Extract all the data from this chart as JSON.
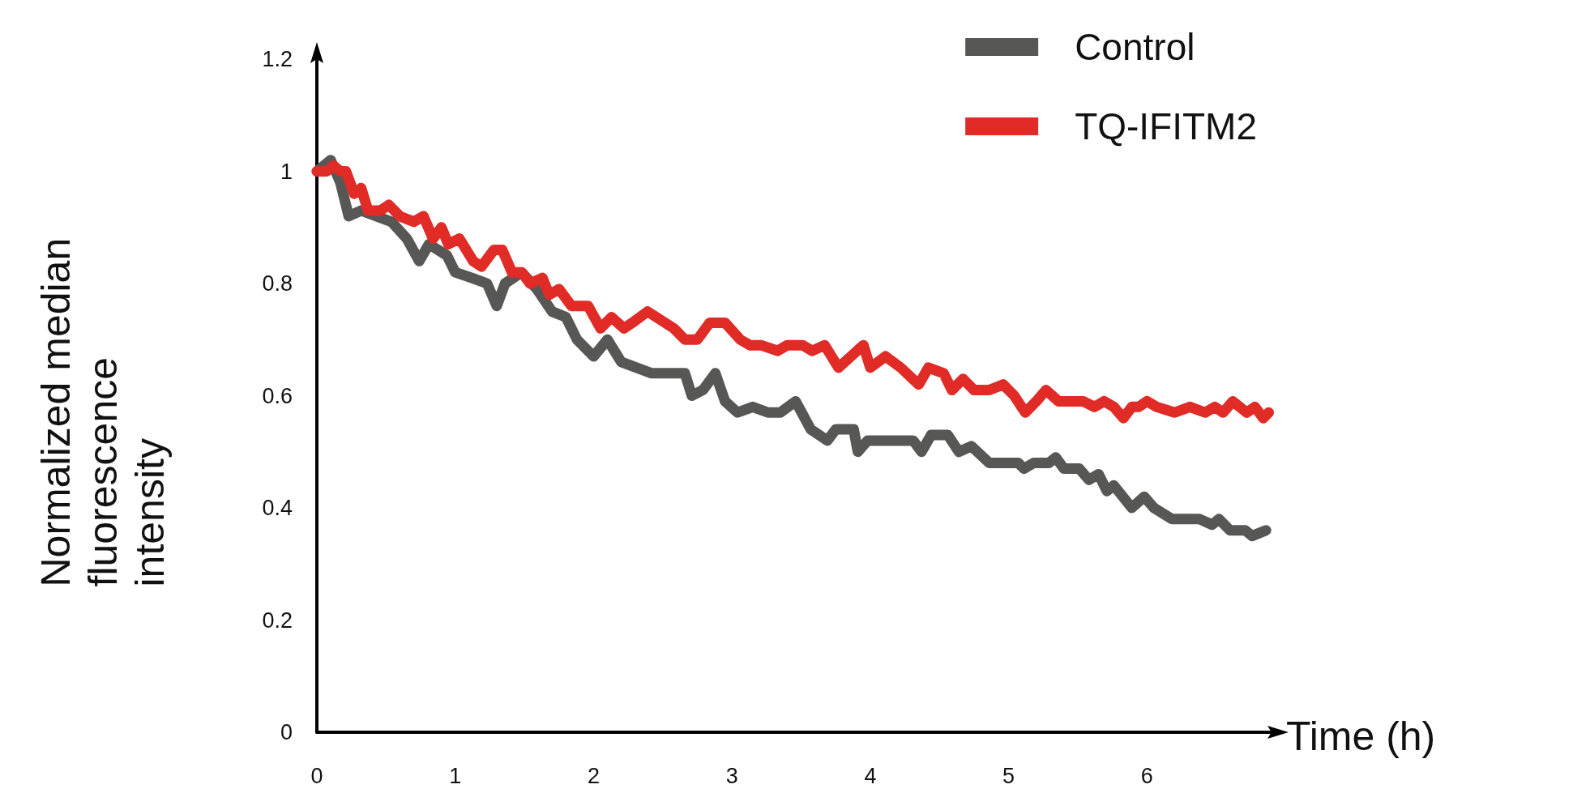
{
  "chart_data": {
    "type": "line",
    "xlabel": "Time (h)",
    "ylabel": "Normalized median fluorescence intensity",
    "xlim": [
      0,
      6.9
    ],
    "ylim": [
      0,
      1.2
    ],
    "xticks": [
      0,
      1,
      2,
      3,
      4,
      5,
      6
    ],
    "yticks": [
      0,
      0.2,
      0.4,
      0.6,
      0.8,
      1,
      1.2
    ],
    "grid": false,
    "legend": "top right",
    "marker": "none",
    "line_style": "solid",
    "series": [
      {
        "name": "Control",
        "color": "#575755",
        "x": [
          0,
          0.1,
          0.17,
          0.23,
          0.32,
          0.54,
          0.65,
          0.74,
          0.81,
          0.94,
          1.0,
          1.12,
          1.23,
          1.3,
          1.36,
          1.48,
          1.59,
          1.7,
          1.8,
          1.88,
          2.0,
          2.1,
          2.2,
          2.42,
          2.66,
          2.71,
          2.79,
          2.88,
          2.95,
          3.04,
          3.15,
          3.26,
          3.35,
          3.46,
          3.57,
          3.69,
          3.75,
          3.88,
          3.91,
          3.98,
          4.31,
          4.37,
          4.44,
          4.56,
          4.64,
          4.73,
          4.86,
          5.07,
          5.11,
          5.18,
          5.29,
          5.34,
          5.4,
          5.51,
          5.58,
          5.65,
          5.71,
          5.76,
          5.89,
          5.98,
          6.05,
          6.18,
          6.38,
          6.47,
          6.52,
          6.6,
          6.71,
          6.76,
          6.86
        ],
        "values": [
          1.0,
          1.02,
          0.98,
          0.92,
          0.93,
          0.91,
          0.88,
          0.84,
          0.87,
          0.85,
          0.82,
          0.81,
          0.8,
          0.76,
          0.8,
          0.82,
          0.79,
          0.75,
          0.74,
          0.7,
          0.67,
          0.7,
          0.66,
          0.64,
          0.64,
          0.6,
          0.61,
          0.64,
          0.59,
          0.57,
          0.58,
          0.57,
          0.57,
          0.59,
          0.54,
          0.52,
          0.54,
          0.54,
          0.5,
          0.52,
          0.52,
          0.5,
          0.53,
          0.53,
          0.5,
          0.51,
          0.48,
          0.48,
          0.47,
          0.48,
          0.48,
          0.49,
          0.47,
          0.47,
          0.45,
          0.46,
          0.43,
          0.44,
          0.4,
          0.42,
          0.4,
          0.38,
          0.38,
          0.37,
          0.38,
          0.36,
          0.36,
          0.35,
          0.36
        ]
      },
      {
        "name": "TQ-IFITM2",
        "color": "#e02b27",
        "x": [
          0,
          0.07,
          0.12,
          0.17,
          0.21,
          0.27,
          0.32,
          0.37,
          0.46,
          0.52,
          0.6,
          0.7,
          0.77,
          0.84,
          0.9,
          0.95,
          1.03,
          1.13,
          1.19,
          1.28,
          1.34,
          1.41,
          1.48,
          1.54,
          1.63,
          1.68,
          1.75,
          1.84,
          1.96,
          2.05,
          2.13,
          2.22,
          2.28,
          2.39,
          2.58,
          2.66,
          2.75,
          2.84,
          2.95,
          3.06,
          3.13,
          3.21,
          3.33,
          3.4,
          3.51,
          3.58,
          3.67,
          3.77,
          3.86,
          3.95,
          4.0,
          4.11,
          4.22,
          4.35,
          4.42,
          4.53,
          4.59,
          4.67,
          4.75,
          4.86,
          4.96,
          5.04,
          5.12,
          5.2,
          5.27,
          5.36,
          5.54,
          5.62,
          5.69,
          5.76,
          5.83,
          5.89,
          5.94,
          6.0,
          6.07,
          6.2,
          6.31,
          6.42,
          6.49,
          6.55,
          6.62,
          6.72,
          6.78,
          6.84,
          6.88
        ],
        "values": [
          1.0,
          1.0,
          1.01,
          1.0,
          1.0,
          0.96,
          0.97,
          0.93,
          0.93,
          0.94,
          0.92,
          0.91,
          0.92,
          0.88,
          0.9,
          0.87,
          0.88,
          0.84,
          0.83,
          0.86,
          0.86,
          0.82,
          0.82,
          0.8,
          0.81,
          0.78,
          0.79,
          0.76,
          0.76,
          0.72,
          0.74,
          0.72,
          0.73,
          0.75,
          0.72,
          0.7,
          0.7,
          0.73,
          0.73,
          0.7,
          0.69,
          0.69,
          0.68,
          0.69,
          0.69,
          0.68,
          0.69,
          0.65,
          0.67,
          0.69,
          0.65,
          0.67,
          0.65,
          0.62,
          0.65,
          0.64,
          0.61,
          0.63,
          0.61,
          0.61,
          0.62,
          0.6,
          0.57,
          0.59,
          0.61,
          0.59,
          0.59,
          0.58,
          0.59,
          0.58,
          0.56,
          0.58,
          0.58,
          0.59,
          0.58,
          0.57,
          0.58,
          0.57,
          0.58,
          0.57,
          0.59,
          0.57,
          0.58,
          0.56,
          0.57
        ]
      }
    ]
  }
}
